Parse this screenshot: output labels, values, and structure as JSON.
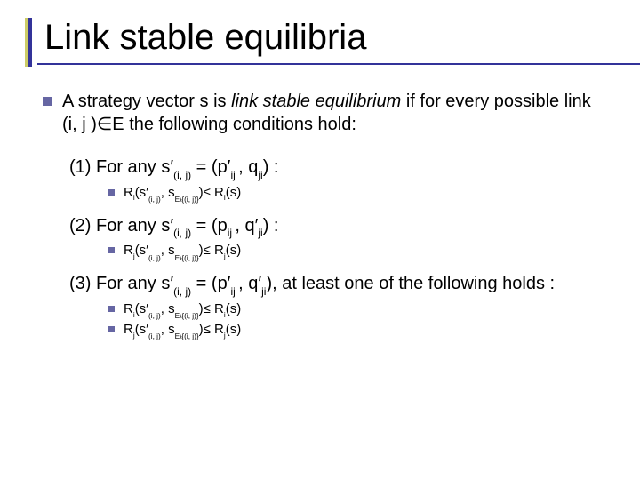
{
  "colors": {
    "accent_yellow": "#cccc66",
    "accent_blue": "#333399",
    "bullet": "#6666a3",
    "text": "#000000",
    "background": "#ffffff"
  },
  "slide": {
    "title": "Link stable equilibria",
    "intro_pre": "A strategy vector s is ",
    "intro_em": "link stable equilibrium",
    "intro_post": " if for every possible link (i, j )∈E the following conditions hold:",
    "c1": {
      "label": "(1) For any s′",
      "sub": "(i, j)",
      "eq": " = (p′",
      "eq_sub": "ij ",
      "eq_post": ", q",
      "eq_sub2": "ji",
      "eq_end": ") :",
      "bullet_r": "R",
      "bullet_i": "i",
      "open": "(s′",
      "open_sub": "(i, j)",
      "comma": ", s",
      "rest_sub": "E\\{(i, j)}",
      "close": ")≤ R",
      "close_i": "i",
      "s": "(s)"
    },
    "c2": {
      "label": "(2) For any s′",
      "sub": "(i, j)",
      "eq": " = (p",
      "eq_sub": "ij ",
      "eq_post": ", q′",
      "eq_sub2": "ji",
      "eq_end": ") :",
      "bullet_r": "R",
      "bullet_j": "j",
      "open": "(s′",
      "open_sub": "(i, j)",
      "comma": ", s",
      "rest_sub": "E\\{(i, j)}",
      "close": ")≤ R",
      "close_j": "j",
      "s": "(s)"
    },
    "c3": {
      "label": "(3) For any s′",
      "sub": "(i, j)",
      "eq": " = (p′",
      "eq_sub": "ij ",
      "eq_post": ", q′",
      "eq_sub2": "ji",
      "eq_end": "), at least one of the following holds :",
      "b1_r": "R",
      "b1_i": "i",
      "b1_open": "(s′",
      "b1_open_sub": "(i, j)",
      "b1_comma": ", s",
      "b1_rest_sub": "E\\{(i, j)}",
      "b1_close": ")≤ R",
      "b1_close_i": "i",
      "b1_s": "(s)",
      "b2_r": "R",
      "b2_j": "j",
      "b2_open": "(s′",
      "b2_open_sub": "(i, j)",
      "b2_comma": ", s",
      "b2_rest_sub": "E\\{(i, j)}",
      "b2_close": ")≤ R",
      "b2_close_j": "j",
      "b2_s": "(s)"
    }
  }
}
